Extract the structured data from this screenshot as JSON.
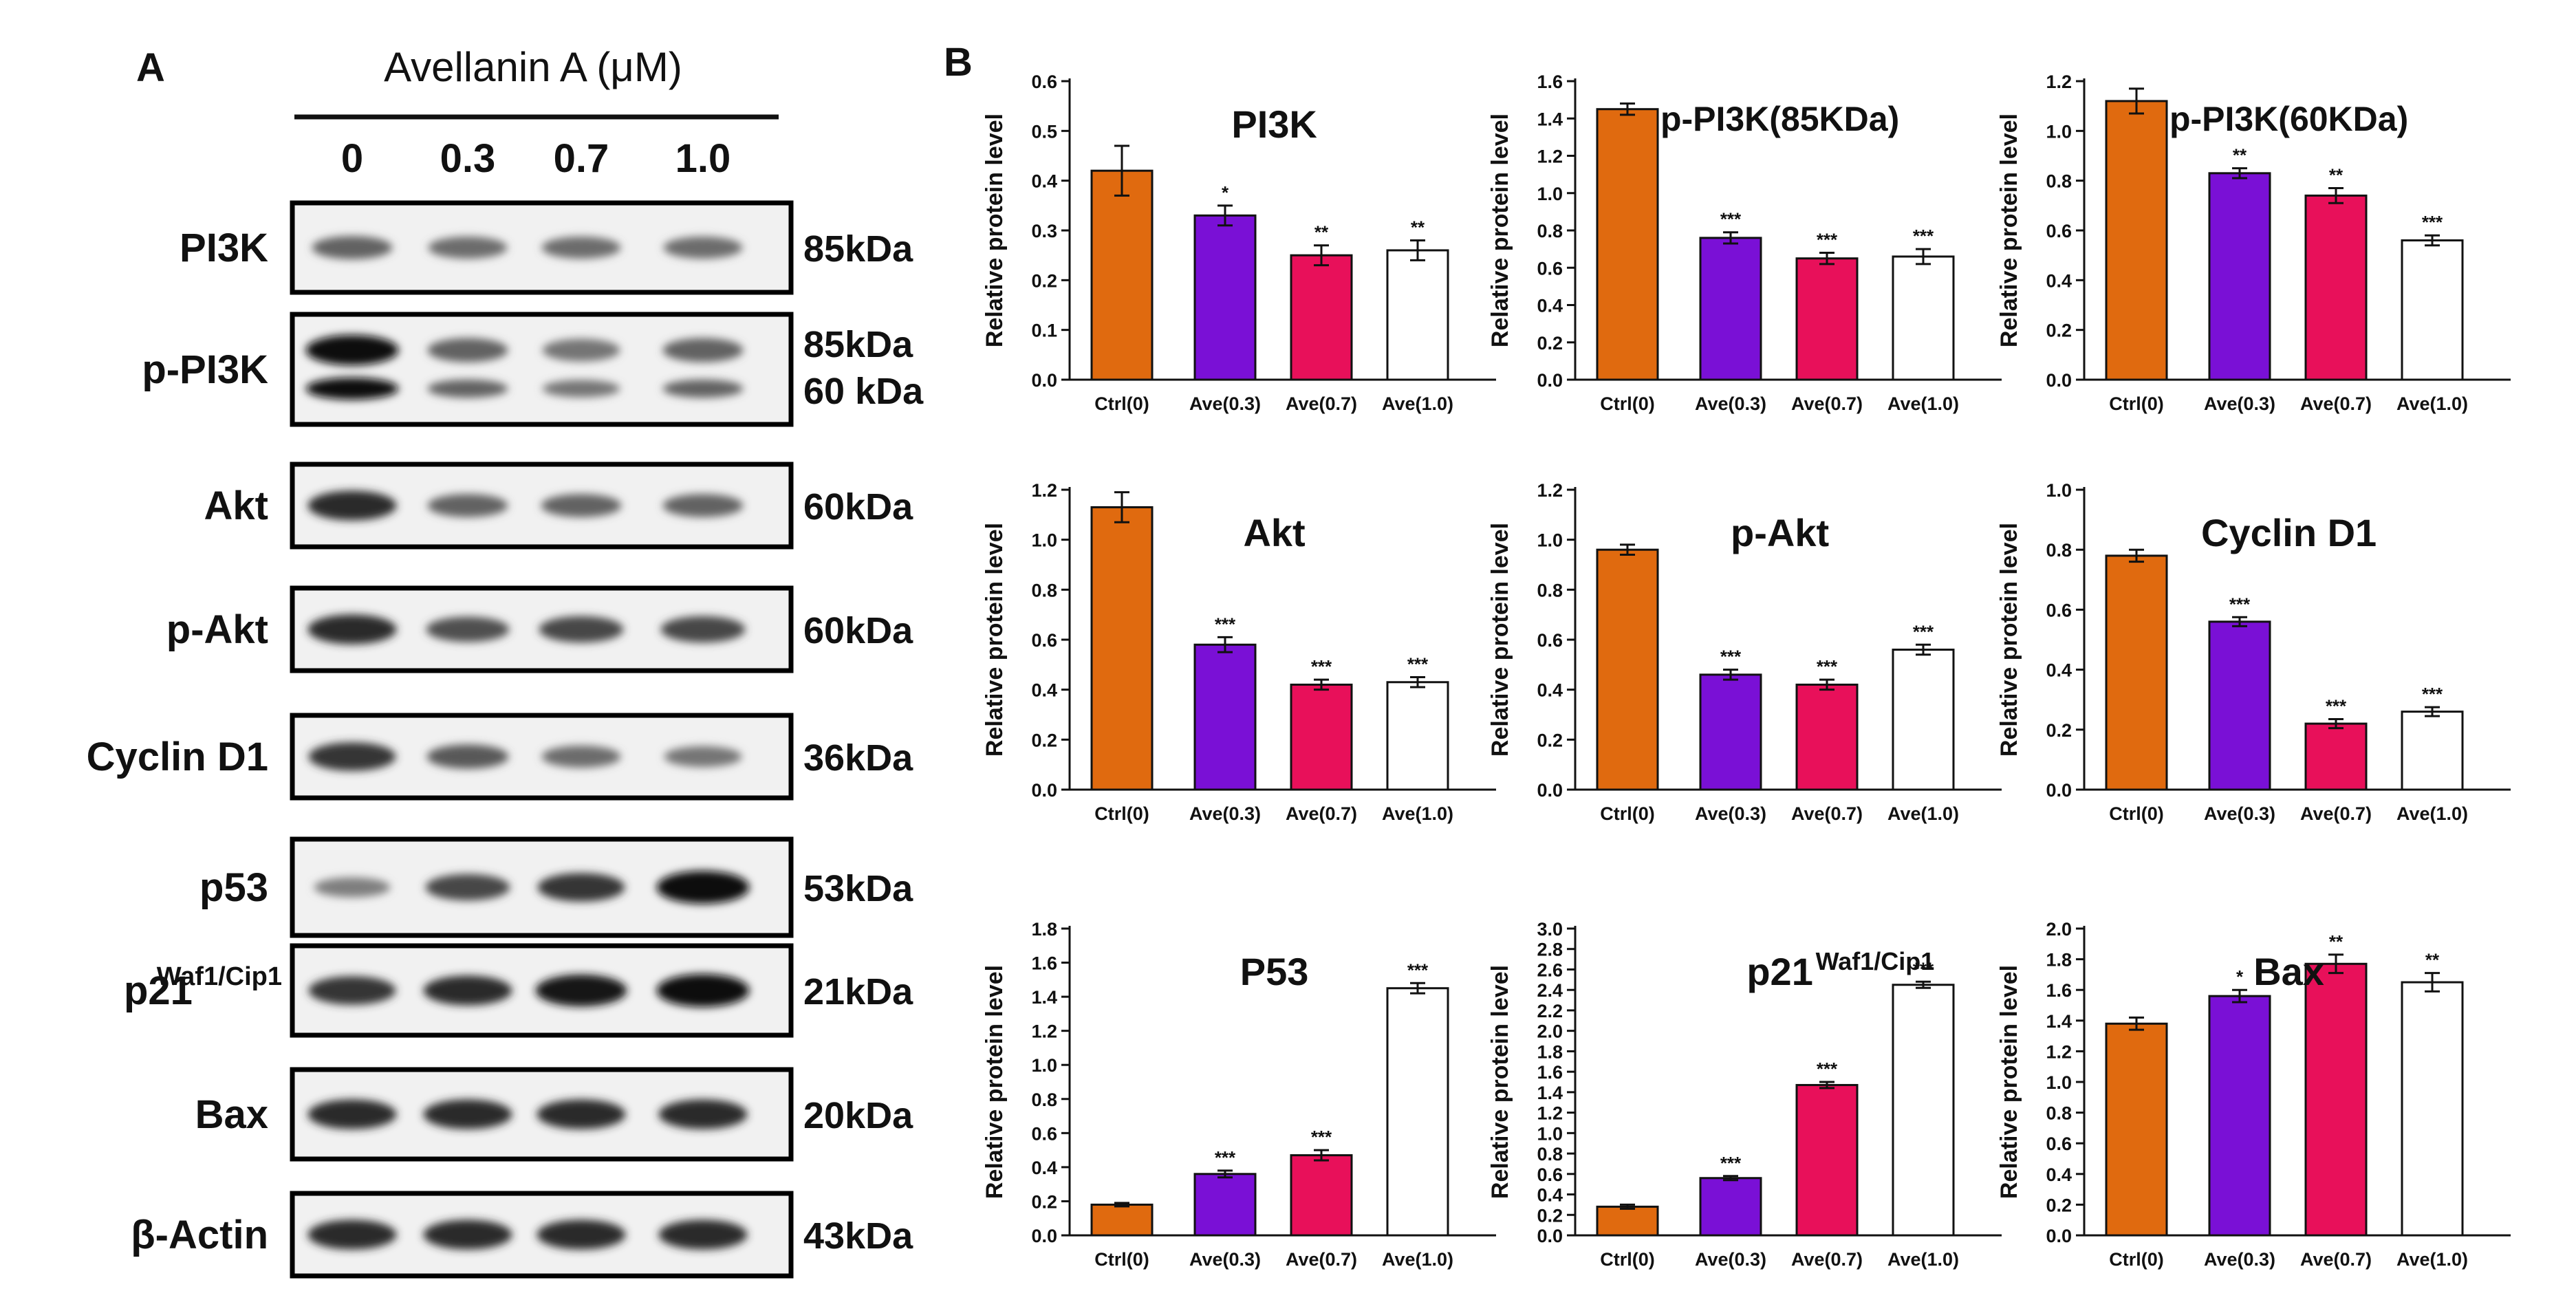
{
  "figure": {
    "panel_a_label": "A",
    "panel_b_label": "B",
    "treatment_header": "Avellanin A (μM)",
    "doses": [
      "0",
      "0.3",
      "0.7",
      "1.0"
    ],
    "blots": [
      {
        "protein": "PI3K",
        "sup": "",
        "kda": [
          "85kDa"
        ],
        "intensity": [
          0.55,
          0.5,
          0.5,
          0.5
        ],
        "double_band": false
      },
      {
        "protein": "p-PI3K",
        "sup": "",
        "kda": [
          "85kDa",
          "60 kDa"
        ],
        "intensity": [
          1.0,
          0.55,
          0.45,
          0.55
        ],
        "double_band": true
      },
      {
        "protein": "Akt",
        "sup": "",
        "kda": [
          "60kDa"
        ],
        "intensity": [
          0.85,
          0.55,
          0.55,
          0.55
        ],
        "double_band": false
      },
      {
        "protein": "p-Akt",
        "sup": "",
        "kda": [
          "60kDa"
        ],
        "intensity": [
          0.85,
          0.65,
          0.7,
          0.7
        ],
        "double_band": false
      },
      {
        "protein": "Cyclin D1",
        "sup": "",
        "kda": [
          "36kDa"
        ],
        "intensity": [
          0.8,
          0.6,
          0.5,
          0.45
        ],
        "double_band": false
      },
      {
        "protein": "p53",
        "sup": "",
        "kda": [
          "53kDa"
        ],
        "intensity": [
          0.4,
          0.7,
          0.8,
          1.0
        ],
        "double_band": false
      },
      {
        "protein": "p21",
        "sup": "Waf1/Cip1",
        "kda": [
          "21kDa"
        ],
        "intensity": [
          0.8,
          0.85,
          0.95,
          1.0
        ],
        "double_band": false
      },
      {
        "protein": "Bax",
        "sup": "",
        "kda": [
          "20kDa"
        ],
        "intensity": [
          0.85,
          0.85,
          0.85,
          0.85
        ],
        "double_band": false
      },
      {
        "protein": "β-Actin",
        "sup": "",
        "kda": [
          "43kDa"
        ],
        "intensity": [
          0.85,
          0.85,
          0.85,
          0.85
        ],
        "double_band": false
      }
    ]
  },
  "chart_data": [
    {
      "type": "bar",
      "title": "PI3K",
      "title_sup": "",
      "ylabel": "Relative protein level",
      "categories": [
        "Ctrl(0)",
        "Ave(0.3)",
        "Ave(0.7)",
        "Ave(1.0)"
      ],
      "values": [
        0.42,
        0.33,
        0.25,
        0.26
      ],
      "errors": [
        0.05,
        0.02,
        0.02,
        0.02
      ],
      "significance": [
        "",
        "*",
        "**",
        "**"
      ],
      "ylim": [
        0,
        0.6
      ],
      "ticks": [
        "0.0",
        "0.1",
        "0.2",
        "0.3",
        "0.4",
        "0.5",
        "0.6"
      ]
    },
    {
      "type": "bar",
      "title": "p-PI3K(85KDa)",
      "title_sup": "",
      "ylabel": "Relative protein level",
      "categories": [
        "Ctrl(0)",
        "Ave(0.3)",
        "Ave(0.7)",
        "Ave(1.0)"
      ],
      "values": [
        1.45,
        0.76,
        0.65,
        0.66
      ],
      "errors": [
        0.03,
        0.03,
        0.03,
        0.04
      ],
      "significance": [
        "",
        "***",
        "***",
        "***"
      ],
      "ylim": [
        0,
        1.6
      ],
      "ticks": [
        "0.0",
        "0.2",
        "0.4",
        "0.6",
        "0.8",
        "1.0",
        "1.2",
        "1.4",
        "1.6"
      ]
    },
    {
      "type": "bar",
      "title": "p-PI3K(60KDa)",
      "title_sup": "",
      "ylabel": "Relative protein level",
      "categories": [
        "Ctrl(0)",
        "Ave(0.3)",
        "Ave(0.7)",
        "Ave(1.0)"
      ],
      "values": [
        1.12,
        0.83,
        0.74,
        0.56
      ],
      "errors": [
        0.05,
        0.02,
        0.03,
        0.02
      ],
      "significance": [
        "",
        "**",
        "**",
        "***"
      ],
      "ylim": [
        0,
        1.2
      ],
      "ticks": [
        "0.0",
        "0.2",
        "0.4",
        "0.6",
        "0.8",
        "1.0",
        "1.2"
      ]
    },
    {
      "type": "bar",
      "title": "Akt",
      "title_sup": "",
      "ylabel": "Relative protein level",
      "categories": [
        "Ctrl(0)",
        "Ave(0.3)",
        "Ave(0.7)",
        "Ave(1.0)"
      ],
      "values": [
        1.13,
        0.58,
        0.42,
        0.43
      ],
      "errors": [
        0.06,
        0.03,
        0.02,
        0.02
      ],
      "significance": [
        "",
        "***",
        "***",
        "***"
      ],
      "ylim": [
        0,
        1.2
      ],
      "ticks": [
        "0.0",
        "0.2",
        "0.4",
        "0.6",
        "0.8",
        "1.0",
        "1.2"
      ]
    },
    {
      "type": "bar",
      "title": "p-Akt",
      "title_sup": "",
      "ylabel": "Relative protein level",
      "categories": [
        "Ctrl(0)",
        "Ave(0.3)",
        "Ave(0.7)",
        "Ave(1.0)"
      ],
      "values": [
        0.96,
        0.46,
        0.42,
        0.56
      ],
      "errors": [
        0.02,
        0.02,
        0.02,
        0.02
      ],
      "significance": [
        "",
        "***",
        "***",
        "***"
      ],
      "ylim": [
        0,
        1.2
      ],
      "ticks": [
        "0.0",
        "0.2",
        "0.4",
        "0.6",
        "0.8",
        "1.0",
        "1.2"
      ]
    },
    {
      "type": "bar",
      "title": "Cyclin D1",
      "title_sup": "",
      "ylabel": "Relative protein level",
      "categories": [
        "Ctrl(0)",
        "Ave(0.3)",
        "Ave(0.7)",
        "Ave(1.0)"
      ],
      "values": [
        0.78,
        0.56,
        0.22,
        0.26
      ],
      "errors": [
        0.02,
        0.015,
        0.015,
        0.015
      ],
      "significance": [
        "",
        "***",
        "***",
        "***"
      ],
      "ylim": [
        0,
        1.0
      ],
      "ticks": [
        "0.0",
        "0.2",
        "0.4",
        "0.6",
        "0.8",
        "1.0"
      ]
    },
    {
      "type": "bar",
      "title": "P53",
      "title_sup": "",
      "ylabel": "Relative protein level",
      "categories": [
        "Ctrl(0)",
        "Ave(0.3)",
        "Ave(0.7)",
        "Ave(1.0)"
      ],
      "values": [
        0.18,
        0.36,
        0.47,
        1.45
      ],
      "errors": [
        0.01,
        0.02,
        0.03,
        0.03
      ],
      "significance": [
        "",
        "***",
        "***",
        "***"
      ],
      "ylim": [
        0,
        1.8
      ],
      "ticks": [
        "0.0",
        "0.2",
        "0.4",
        "0.6",
        "0.8",
        "1.0",
        "1.2",
        "1.4",
        "1.6",
        "1.8"
      ]
    },
    {
      "type": "bar",
      "title": "p21",
      "title_sup": "Waf1/Cip1",
      "ylabel": "Relative protein level",
      "categories": [
        "Ctrl(0)",
        "Ave(0.3)",
        "Ave(0.7)",
        "Ave(1.0)"
      ],
      "values": [
        0.28,
        0.56,
        1.47,
        2.45
      ],
      "errors": [
        0.02,
        0.02,
        0.03,
        0.03
      ],
      "significance": [
        "",
        "***",
        "***",
        "***"
      ],
      "ylim": [
        0,
        3.0
      ],
      "ticks": [
        "0.0",
        "0.2",
        "0.4",
        "0.6",
        "0.8",
        "1.0",
        "1.2",
        "1.4",
        "1.6",
        "1.8",
        "2.0",
        "2.2",
        "2.4",
        "2.6",
        "2.8",
        "3.0"
      ]
    },
    {
      "type": "bar",
      "title": "Bax",
      "title_sup": "",
      "ylabel": "Relative protein level",
      "categories": [
        "Ctrl(0)",
        "Ave(0.3)",
        "Ave(0.7)",
        "Ave(1.0)"
      ],
      "values": [
        1.38,
        1.56,
        1.77,
        1.65
      ],
      "errors": [
        0.04,
        0.04,
        0.06,
        0.06
      ],
      "significance": [
        "",
        "*",
        "**",
        "**"
      ],
      "ylim": [
        0,
        2.0
      ],
      "ticks": [
        "0.0",
        "0.2",
        "0.4",
        "0.6",
        "0.8",
        "1.0",
        "1.2",
        "1.4",
        "1.6",
        "1.8",
        "2.0"
      ]
    }
  ],
  "colors": {
    "ctrl": "#e06a0f",
    "ave03": "#7a10d6",
    "ave07": "#e8105a",
    "ave10": "#ffffff",
    "axis": "#111111",
    "band": "#1a1a1a",
    "blot_bg": "#f1f1f1"
  }
}
